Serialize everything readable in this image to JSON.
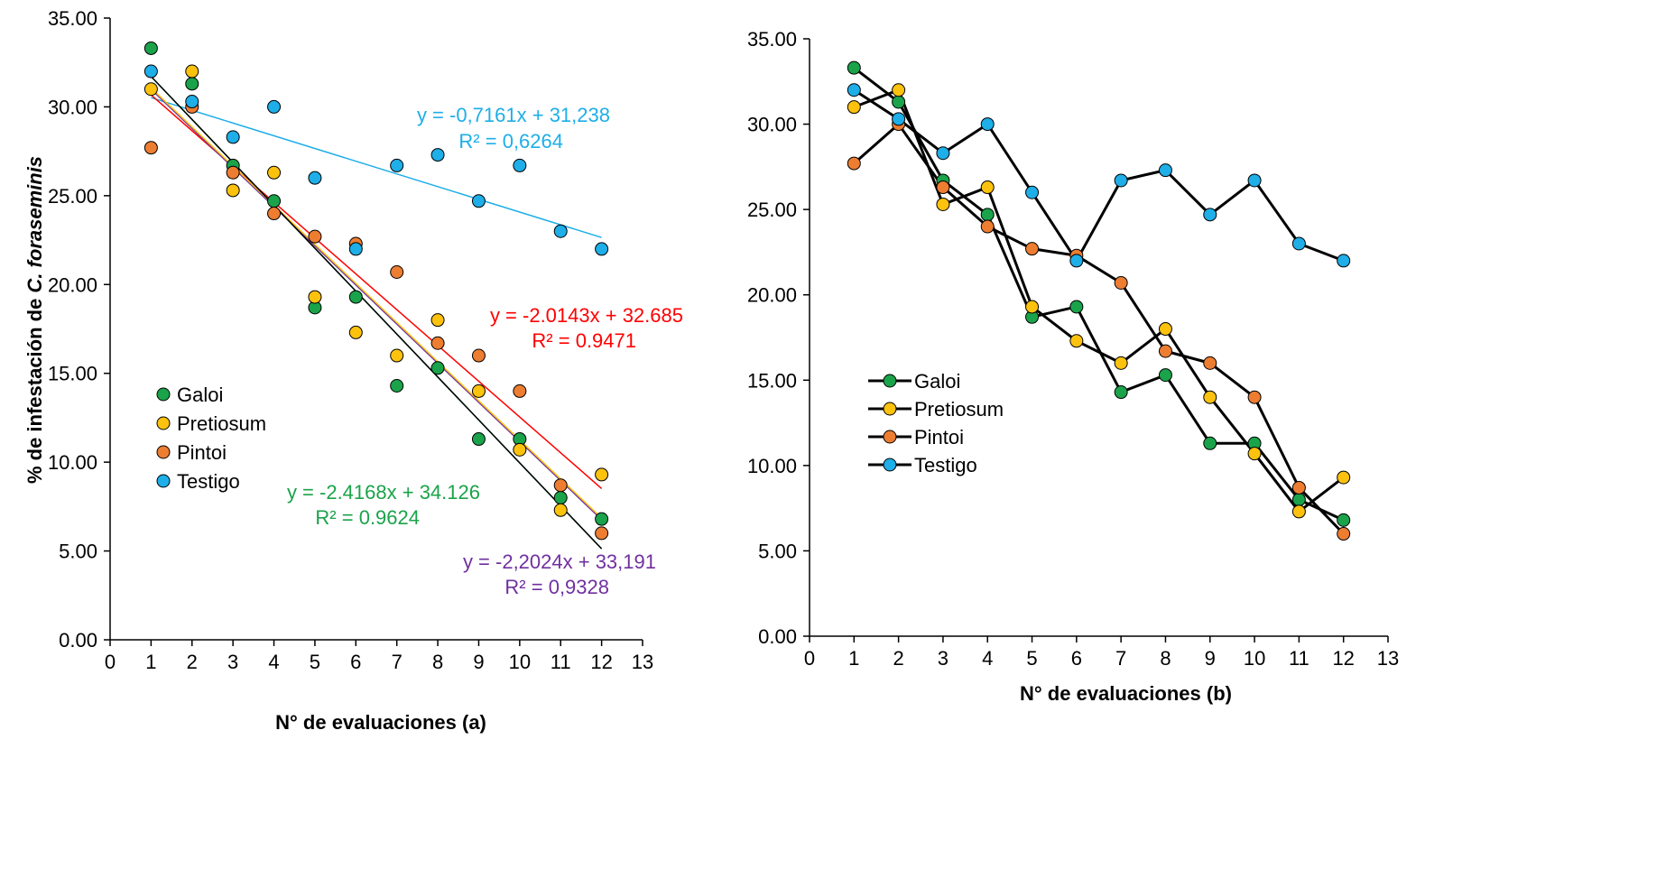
{
  "chart_data": [
    {
      "type": "scatter",
      "xlabel": "N° de evaluaciones (a)",
      "ylabel_prefix": "% de infestación de ",
      "ylabel_italic": "C. foraseminis",
      "xlim": [
        0,
        13
      ],
      "ylim": [
        0,
        35
      ],
      "x_ticks": [
        "0",
        "1",
        "2",
        "3",
        "4",
        "5",
        "6",
        "7",
        "8",
        "9",
        "10",
        "11",
        "12",
        "13"
      ],
      "y_ticks": [
        "0.00",
        "5.00",
        "10.00",
        "15.00",
        "20.00",
        "25.00",
        "30.00",
        "35.00"
      ],
      "legend_position": "center-left",
      "x": [
        1,
        2,
        3,
        4,
        5,
        6,
        7,
        8,
        9,
        10,
        11,
        12
      ],
      "series": [
        {
          "name": "Galoi",
          "color": "#1aa34a",
          "values": [
            33.3,
            31.3,
            26.7,
            24.7,
            18.7,
            19.3,
            14.3,
            15.3,
            11.3,
            11.3,
            8.0,
            6.8
          ]
        },
        {
          "name": "Pretiosum",
          "color": "#fcc20e",
          "values": [
            31.0,
            32.0,
            25.3,
            26.3,
            19.3,
            17.3,
            16.0,
            18.0,
            14.0,
            10.7,
            7.3,
            9.3
          ]
        },
        {
          "name": "Pintoi",
          "color": "#ed7d31",
          "values": [
            27.7,
            30.0,
            26.3,
            24.0,
            22.7,
            22.3,
            20.7,
            16.7,
            16.0,
            14.0,
            8.7,
            6.0
          ]
        },
        {
          "name": "Testigo",
          "color": "#1eaee8",
          "values": [
            32.0,
            30.3,
            28.3,
            30.0,
            26.0,
            22.0,
            26.7,
            27.3,
            24.7,
            26.7,
            23.0,
            22.0
          ]
        }
      ],
      "trendlines": [
        {
          "color": "#1eaee8",
          "slope": -0.7161,
          "intercept": 31.238,
          "x_range": [
            1,
            12
          ],
          "equation": "y = -0,7161x + 31,238",
          "r2": "R² = 0,6264"
        },
        {
          "color": "#ff0000",
          "slope": -2.0143,
          "intercept": 32.685,
          "x_range": [
            1,
            12
          ],
          "equation": "y = -2.0143x + 32.685",
          "r2": "R² = 0.9471"
        },
        {
          "color": "#1aa34a",
          "slope": -2.4168,
          "intercept": 34.126,
          "x_range": [
            1,
            12
          ],
          "equation": "y = -2.4168x + 34.126",
          "r2": "R² = 0.9624"
        },
        {
          "color": "#7030a0",
          "slope": -2.2024,
          "intercept": 33.191,
          "x_range": [
            1,
            12
          ],
          "equation": "y = -2,2024x + 33,191",
          "r2": "R² = 0,9328"
        },
        {
          "color": "#fcc20e",
          "slope": -2.2016,
          "intercept": 33.27,
          "x_range": [
            1,
            12
          ]
        },
        {
          "color": "#000000",
          "slope": -2.4168,
          "intercept": 34.126,
          "x_range": [
            1,
            12
          ]
        }
      ]
    },
    {
      "type": "line",
      "xlabel": "N° de evaluaciones (b)",
      "xlim": [
        0,
        13
      ],
      "ylim": [
        0,
        35
      ],
      "x_ticks": [
        "0",
        "1",
        "2",
        "3",
        "4",
        "5",
        "6",
        "7",
        "8",
        "9",
        "10",
        "11",
        "12",
        "13"
      ],
      "y_ticks": [
        "0.00",
        "5.00",
        "10.00",
        "15.00",
        "20.00",
        "25.00",
        "30.00",
        "35.00"
      ],
      "legend_position": "center-left",
      "line_color": "#000000",
      "x": [
        1,
        2,
        3,
        4,
        5,
        6,
        7,
        8,
        9,
        10,
        11,
        12
      ],
      "series": [
        {
          "name": "Galoi",
          "color": "#1aa34a",
          "values": [
            33.3,
            31.3,
            26.7,
            24.7,
            18.7,
            19.3,
            14.3,
            15.3,
            11.3,
            11.3,
            8.0,
            6.8
          ]
        },
        {
          "name": "Pretiosum",
          "color": "#fcc20e",
          "values": [
            31.0,
            32.0,
            25.3,
            26.3,
            19.3,
            17.3,
            16.0,
            18.0,
            14.0,
            10.7,
            7.3,
            9.3
          ]
        },
        {
          "name": "Pintoi",
          "color": "#ed7d31",
          "values": [
            27.7,
            30.0,
            26.3,
            24.0,
            22.7,
            22.3,
            20.7,
            16.7,
            16.0,
            14.0,
            8.7,
            6.0
          ]
        },
        {
          "name": "Testigo",
          "color": "#1eaee8",
          "values": [
            32.0,
            30.3,
            28.3,
            30.0,
            26.0,
            22.0,
            26.7,
            27.3,
            24.7,
            26.7,
            23.0,
            22.0
          ]
        }
      ]
    }
  ]
}
